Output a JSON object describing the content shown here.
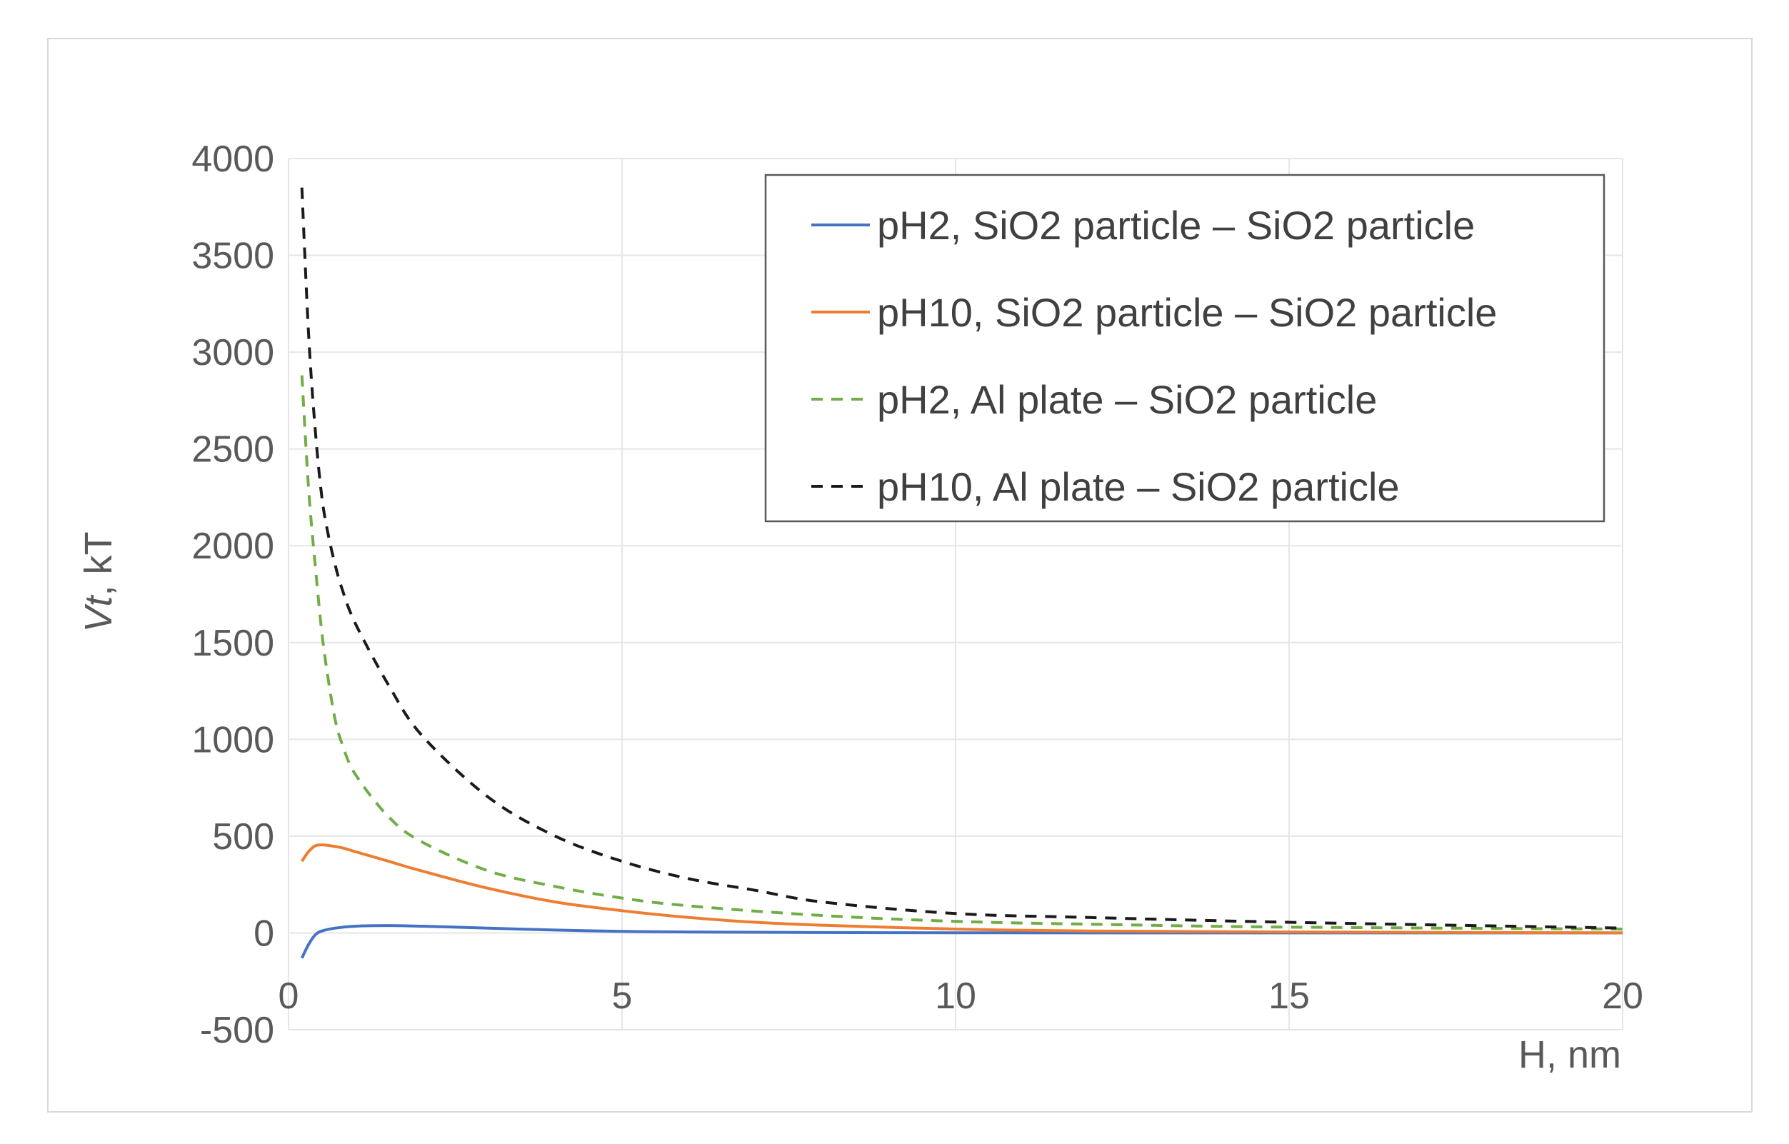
{
  "chart_data": {
    "type": "line",
    "title": "",
    "xlabel": "H, nm",
    "ylabel_italic": "Vt",
    "ylabel_rest": ", kT",
    "xlim": [
      0,
      20
    ],
    "ylim": [
      -500,
      4000
    ],
    "x_ticks": [
      0,
      5,
      10,
      15,
      20
    ],
    "y_ticks": [
      -500,
      0,
      500,
      1000,
      1500,
      2000,
      2500,
      3000,
      3500,
      4000
    ],
    "grid": true,
    "legend_position": "top-right",
    "series": [
      {
        "name": "pH2, SiO2 particle – SiO2 particle",
        "color": "#4472c4",
        "dash": "solid",
        "x": [
          0.2,
          0.3,
          0.4,
          0.5,
          0.7,
          1.0,
          1.5,
          2,
          3,
          4,
          5,
          6,
          8,
          10,
          12,
          15,
          20
        ],
        "y": [
          -130,
          -60,
          -10,
          10,
          25,
          35,
          38,
          35,
          25,
          15,
          8,
          5,
          2,
          1,
          0,
          0,
          0
        ]
      },
      {
        "name": "pH10, SiO2 particle – SiO2 particle",
        "color": "#ed7d31",
        "dash": "solid",
        "x": [
          0.2,
          0.3,
          0.4,
          0.5,
          0.6,
          0.8,
          1.0,
          1.5,
          2,
          3,
          4,
          5,
          6,
          7,
          8,
          10,
          12,
          15,
          20
        ],
        "y": [
          370,
          420,
          450,
          455,
          452,
          440,
          420,
          370,
          320,
          230,
          160,
          115,
          80,
          55,
          40,
          20,
          10,
          5,
          0
        ]
      },
      {
        "name": "pH2, Al plate – SiO2 particle",
        "color": "#70ad47",
        "dash": "dashed",
        "x": [
          0.2,
          0.3,
          0.4,
          0.5,
          0.6,
          0.7,
          0.8,
          1.0,
          1.5,
          2,
          3,
          4,
          5,
          6,
          8,
          10,
          12,
          15,
          20
        ],
        "y": [
          2880,
          2300,
          1900,
          1550,
          1300,
          1100,
          980,
          820,
          600,
          470,
          320,
          240,
          180,
          140,
          90,
          60,
          45,
          30,
          20
        ]
      },
      {
        "name": "pH10, Al plate – SiO2 particle",
        "color": "#1a1a1a",
        "dash": "dashed",
        "x": [
          0.2,
          0.3,
          0.4,
          0.5,
          0.6,
          0.7,
          0.8,
          1.0,
          1.5,
          2,
          3,
          4,
          5,
          6,
          7,
          8,
          10,
          12,
          15,
          20
        ],
        "y": [
          3850,
          3100,
          2600,
          2250,
          2050,
          1900,
          1780,
          1600,
          1280,
          1020,
          700,
          500,
          370,
          280,
          220,
          160,
          100,
          80,
          55,
          25
        ]
      }
    ]
  }
}
